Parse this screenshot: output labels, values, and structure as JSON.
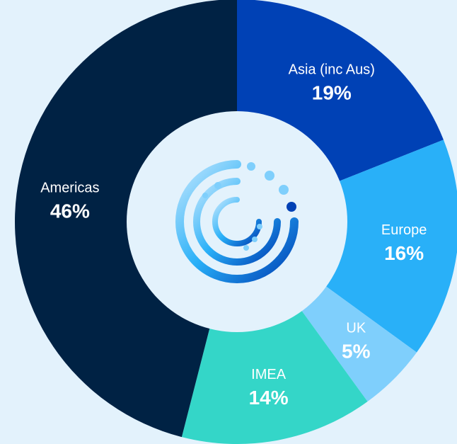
{
  "chart_data": {
    "type": "donut",
    "categories": [
      "Asia (inc Aus)",
      "Europe",
      "UK",
      "IMEA",
      "Americas"
    ],
    "values": [
      19,
      16,
      5,
      14,
      46
    ],
    "value_labels": [
      "19%",
      "16%",
      "5%",
      "14%",
      "46%"
    ],
    "colors": [
      "#0041b5",
      "#29b0f8",
      "#7fcffc",
      "#34d6c8",
      "#002244"
    ]
  }
}
